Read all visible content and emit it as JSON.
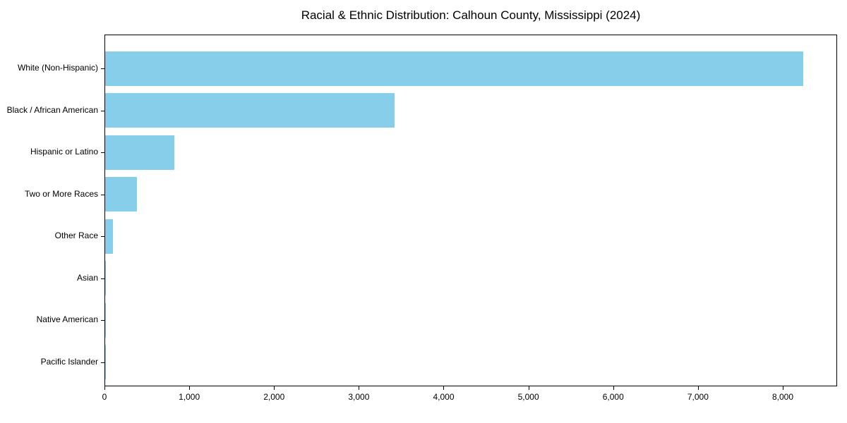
{
  "chart_data": {
    "type": "bar",
    "orientation": "horizontal",
    "title": "Racial & Ethnic Distribution: Calhoun County, Mississippi (2024)",
    "categories": [
      "White (Non-Hispanic)",
      "Black / African American",
      "Hispanic or Latino",
      "Two or More Races",
      "Other Race",
      "Asian",
      "Native American",
      "Pacific Islander"
    ],
    "values": [
      8235,
      3415,
      815,
      375,
      95,
      10,
      5,
      2
    ],
    "xlabel": "",
    "ylabel": "",
    "xlim": [
      0,
      8641
    ],
    "x_ticks": [
      0,
      1000,
      2000,
      3000,
      4000,
      5000,
      6000,
      7000,
      8000
    ],
    "x_tick_labels": [
      "0",
      "1,000",
      "2,000",
      "3,000",
      "4,000",
      "5,000",
      "6,000",
      "7,000",
      "8,000"
    ],
    "grid": false,
    "legend": "none",
    "bar_color": "#87CEEB",
    "background_color": "#ffffff",
    "axis_color": "#000000"
  }
}
